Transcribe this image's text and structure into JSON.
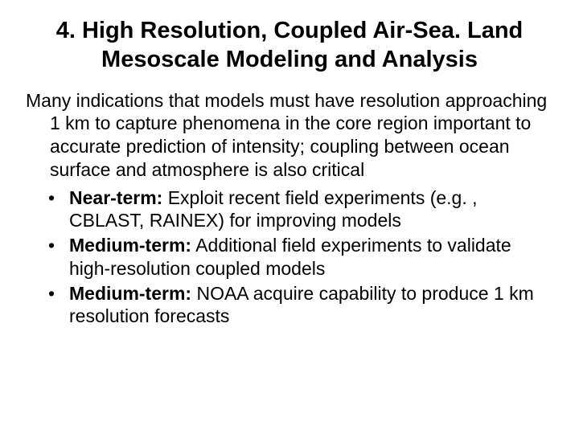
{
  "title": "4. High Resolution, Coupled Air-Sea. Land Mesoscale Modeling and Analysis",
  "intro": "Many indications that models must have resolution approaching 1 km to capture phenomena in the core region important to accurate prediction of intensity; coupling between ocean surface and atmosphere is also critical",
  "bullets": [
    {
      "label": "Near-term:",
      "text": " Exploit recent field experiments (e.g. , CBLAST, RAINEX) for improving models"
    },
    {
      "label": "Medium-term:",
      "text": " Additional field experiments to validate high-resolution coupled models"
    },
    {
      "label": "Medium-term:",
      "text": " NOAA acquire capability to produce 1 km resolution forecasts"
    }
  ],
  "colors": {
    "background": "#ffffff",
    "text": "#000000"
  },
  "typography": {
    "title_fontsize": 29,
    "body_fontsize": 23,
    "font_family": "Arial"
  }
}
